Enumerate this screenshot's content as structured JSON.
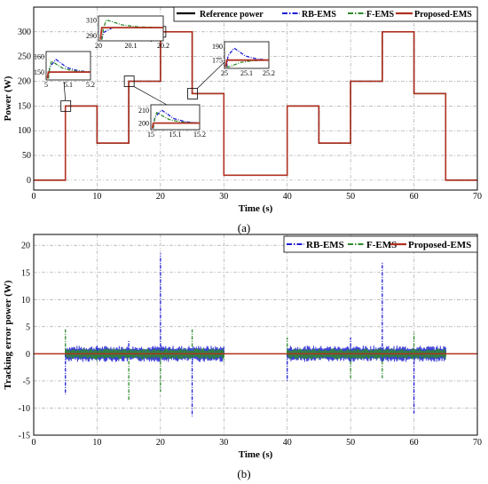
{
  "chart_data": [
    {
      "type": "line",
      "panel_label": "(a)",
      "xlabel": "Time (s)",
      "ylabel": "Power (W)",
      "xlim": [
        0,
        70
      ],
      "ylim": [
        -20,
        350
      ],
      "xticks": [
        0,
        10,
        20,
        30,
        40,
        50,
        60,
        70
      ],
      "yticks": [
        0,
        50,
        100,
        150,
        200,
        250,
        300
      ],
      "grid": true,
      "legend_position": "top-right",
      "series": [
        {
          "name": "Reference power",
          "color": "#000000",
          "style": "solid",
          "x": [
            0,
            5,
            5,
            10,
            10,
            15,
            15,
            20,
            20,
            25,
            25,
            30,
            30,
            40,
            40,
            45,
            45,
            50,
            50,
            55,
            55,
            60,
            60,
            65,
            65,
            70
          ],
          "y": [
            0,
            0,
            150,
            150,
            75,
            75,
            200,
            200,
            300,
            300,
            175,
            175,
            10,
            10,
            150,
            150,
            75,
            75,
            200,
            200,
            300,
            300,
            175,
            175,
            0,
            0
          ]
        },
        {
          "name": "RB-EMS",
          "color": "#1c1cd6",
          "style": "dashdot",
          "x": [
            0,
            5,
            5,
            10,
            10,
            15,
            15,
            20,
            20,
            25,
            25,
            30,
            30,
            40,
            40,
            45,
            45,
            50,
            50,
            55,
            55,
            60,
            60,
            65,
            65,
            70
          ],
          "y": [
            0,
            0,
            150,
            150,
            75,
            75,
            200,
            200,
            300,
            300,
            175,
            175,
            10,
            10,
            150,
            150,
            75,
            75,
            200,
            200,
            300,
            300,
            175,
            175,
            0,
            0
          ]
        },
        {
          "name": "F-EMS",
          "color": "#2e8b2e",
          "style": "dashdot",
          "x": [
            0,
            5,
            5,
            10,
            10,
            15,
            15,
            20,
            20,
            25,
            25,
            30,
            30,
            40,
            40,
            45,
            45,
            50,
            50,
            55,
            55,
            60,
            60,
            65,
            65,
            70
          ],
          "y": [
            0,
            0,
            150,
            150,
            75,
            75,
            200,
            200,
            300,
            300,
            175,
            175,
            10,
            10,
            150,
            150,
            75,
            75,
            200,
            200,
            300,
            300,
            175,
            175,
            0,
            0
          ]
        },
        {
          "name": "Proposed-EMS",
          "color": "#b03020",
          "style": "solid",
          "x": [
            0,
            5,
            5,
            10,
            10,
            15,
            15,
            20,
            20,
            25,
            25,
            30,
            30,
            40,
            40,
            45,
            45,
            50,
            50,
            55,
            55,
            60,
            60,
            65,
            65,
            70
          ],
          "y": [
            0,
            0,
            150,
            150,
            75,
            75,
            200,
            200,
            300,
            300,
            175,
            175,
            10,
            10,
            150,
            150,
            75,
            75,
            200,
            200,
            300,
            300,
            175,
            175,
            0,
            0
          ]
        }
      ],
      "insets": [
        {
          "id": "z5",
          "xticks": [
            "5",
            "5.1",
            "5.2"
          ],
          "yticks": [
            "150",
            "160"
          ],
          "xrange": [
            5,
            5.2
          ],
          "yrange": [
            145,
            163
          ],
          "ref": 150,
          "peaks": {
            "RB-EMS": 158,
            "F-EMS": 157,
            "Proposed-EMS": 150
          }
        },
        {
          "id": "z20",
          "xticks": [
            "20",
            "20.1",
            "20.2"
          ],
          "yticks": [
            "290",
            "310"
          ],
          "xrange": [
            20,
            20.2
          ],
          "yrange": [
            283,
            315
          ],
          "ref": 300,
          "peaks": {
            "RB-EMS": 300,
            "F-EMS": 310,
            "Proposed-EMS": 300
          }
        },
        {
          "id": "z15",
          "xticks": [
            "15",
            "15.1",
            "15.2"
          ],
          "yticks": [
            "200",
            "210"
          ],
          "xrange": [
            15,
            15.2
          ],
          "yrange": [
            195,
            214
          ],
          "ref": 200,
          "peaks": {
            "RB-EMS": 210,
            "F-EMS": 208,
            "Proposed-EMS": 200
          }
        },
        {
          "id": "z25",
          "xticks": [
            "25",
            "25.1",
            "25.2"
          ],
          "yticks": [
            "175",
            "190"
          ],
          "xrange": [
            25,
            25.2
          ],
          "yrange": [
            166,
            195
          ],
          "ref": 175,
          "peaks": {
            "RB-EMS": 188,
            "F-EMS": 168,
            "Proposed-EMS": 175
          }
        }
      ]
    },
    {
      "type": "line",
      "panel_label": "(b)",
      "xlabel": "Time (s)",
      "ylabel": "Tracking error power (W)",
      "xlim": [
        0,
        70
      ],
      "ylim": [
        -15,
        22
      ],
      "xticks": [
        0,
        10,
        20,
        30,
        40,
        50,
        60,
        70
      ],
      "yticks": [
        -15,
        -10,
        -5,
        0,
        5,
        10,
        15,
        20
      ],
      "grid": true,
      "legend_position": "top-right",
      "steps": [
        5,
        10,
        15,
        20,
        25,
        30,
        40,
        45,
        50,
        55,
        60,
        65
      ],
      "series": [
        {
          "name": "RB-EMS",
          "color": "#1c1cd6",
          "style": "dashdot",
          "spikes": [
            [
              5,
              -7.5
            ],
            [
              10,
              1.5
            ],
            [
              15,
              2.5
            ],
            [
              20,
              18.5
            ],
            [
              25,
              -11.5
            ],
            [
              30,
              1
            ],
            [
              40,
              -5
            ],
            [
              45,
              1
            ],
            [
              50,
              3
            ],
            [
              55,
              17
            ],
            [
              60,
              -11
            ],
            [
              65,
              1
            ]
          ],
          "noise_band": [
            -1.5,
            1.5
          ]
        },
        {
          "name": "F-EMS",
          "color": "#2e8b2e",
          "style": "dashdot",
          "spikes": [
            [
              5,
              4.5
            ],
            [
              10,
              -1.5
            ],
            [
              15,
              -8.5
            ],
            [
              20,
              -7
            ],
            [
              25,
              4.5
            ],
            [
              30,
              -1.5
            ],
            [
              40,
              3
            ],
            [
              45,
              -1
            ],
            [
              50,
              -4.5
            ],
            [
              55,
              -4.5
            ],
            [
              60,
              4
            ],
            [
              65,
              -1
            ]
          ],
          "noise_band": [
            -1,
            1
          ]
        },
        {
          "name": "Proposed-EMS",
          "color": "#b03020",
          "style": "solid",
          "spikes": [],
          "noise_band": [
            -0.2,
            0.2
          ]
        }
      ]
    }
  ]
}
